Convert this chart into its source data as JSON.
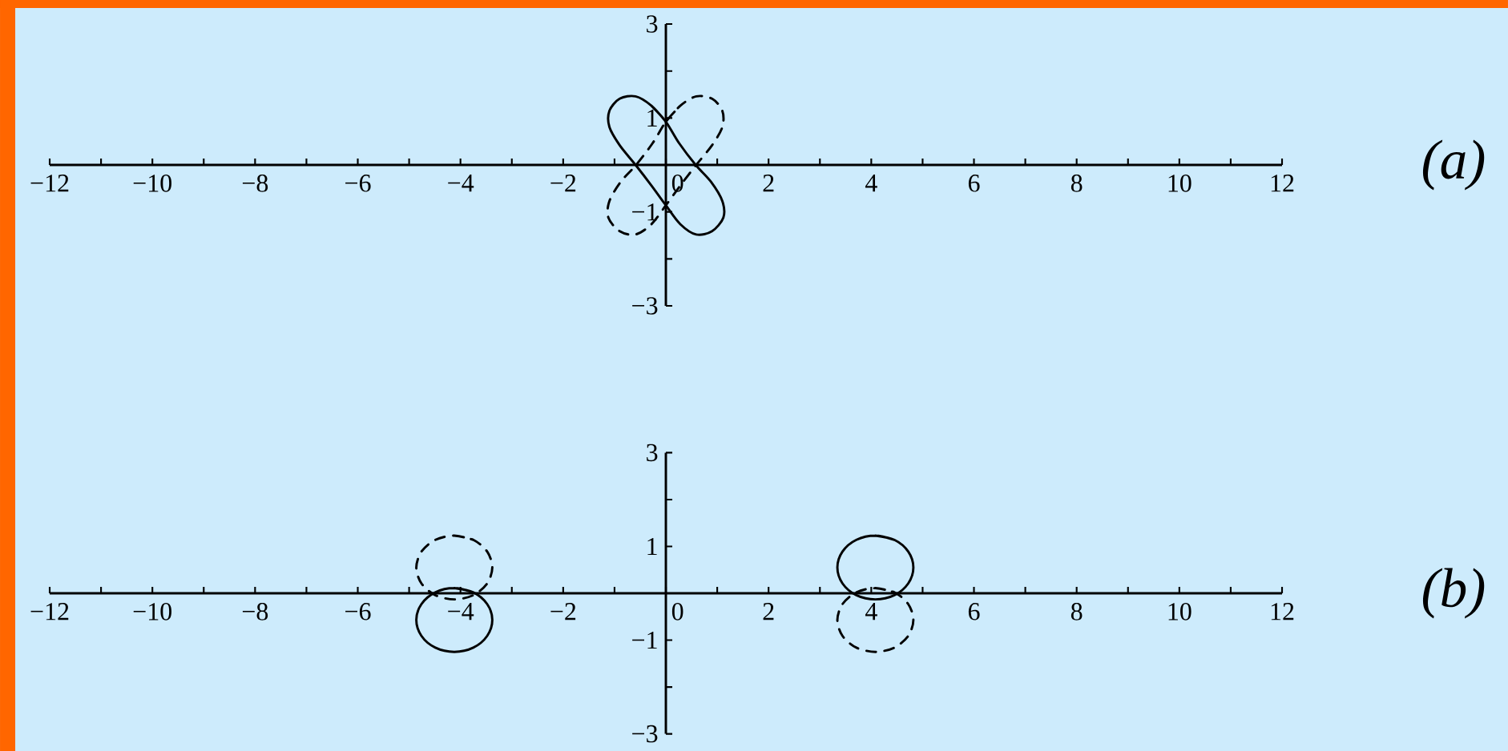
{
  "chart_data": [
    {
      "type": "line",
      "annotations": [
        "(a)"
      ],
      "xlim": [
        -12,
        12
      ],
      "ylim": [
        -3,
        3
      ],
      "marker": "none",
      "xticks": [
        {
          "value": -12,
          "label": "−12"
        },
        {
          "value": -11,
          "label": null
        },
        {
          "value": -10,
          "label": "−10"
        },
        {
          "value": -9,
          "label": null
        },
        {
          "value": -8,
          "label": "−8"
        },
        {
          "value": -7,
          "label": null
        },
        {
          "value": -6,
          "label": "−6"
        },
        {
          "value": -5,
          "label": null
        },
        {
          "value": -4,
          "label": "−4"
        },
        {
          "value": -3,
          "label": null
        },
        {
          "value": -2,
          "label": "−2"
        },
        {
          "value": -1,
          "label": null
        },
        0,
        {
          "value": 1,
          "label": null
        },
        2,
        {
          "value": 3,
          "label": null
        },
        4,
        {
          "value": 5,
          "label": null
        },
        6,
        {
          "value": 7,
          "label": null
        },
        8,
        {
          "value": 9,
          "label": null
        },
        10,
        {
          "value": 11,
          "label": null
        },
        12
      ],
      "yticks": [
        {
          "value": -3,
          "label": "−3"
        },
        {
          "value": -2,
          "label": null
        },
        {
          "value": -1,
          "label": "−1"
        },
        1,
        {
          "value": 2,
          "label": null
        },
        3
      ],
      "series": [
        {
          "color": "#000000",
          "line_style": "solid",
          "x": [
            0.0,
            -0.28,
            -0.59,
            -0.9,
            -1.1,
            -1.1,
            -0.9,
            -0.59,
            -0.28,
            0.0,
            0.28,
            0.59,
            0.9,
            1.12,
            1.1,
            0.88,
            0.58,
            0.26,
            0.0,
            -0.28
          ],
          "values": [
            0.92,
            1.26,
            1.46,
            1.41,
            1.15,
            0.81,
            0.42,
            0.0,
            -0.44,
            -0.86,
            -1.26,
            -1.48,
            -1.41,
            -1.12,
            -0.77,
            -0.36,
            0.0,
            0.46,
            0.92,
            1.26
          ]
        },
        {
          "color": "#000000",
          "line_style": "dashed",
          "x": [
            0.0,
            0.28,
            0.59,
            0.9,
            1.1,
            1.1,
            0.9,
            0.59,
            0.28,
            0.0,
            -0.28,
            -0.59,
            -0.9,
            -1.12,
            -1.1,
            -0.88,
            -0.58,
            -0.26,
            0.0,
            0.28
          ],
          "values": [
            0.92,
            1.26,
            1.46,
            1.41,
            1.15,
            0.81,
            0.42,
            0.0,
            -0.44,
            -0.86,
            -1.26,
            -1.48,
            -1.41,
            -1.12,
            -0.77,
            -0.36,
            0.0,
            0.46,
            0.92,
            1.26
          ]
        }
      ]
    },
    {
      "type": "line",
      "annotations": [
        "(b)"
      ],
      "xlim": [
        -12,
        12
      ],
      "ylim": [
        -3,
        3
      ],
      "marker": "none",
      "xticks": [
        {
          "value": -12,
          "label": "−12"
        },
        {
          "value": -11,
          "label": null
        },
        {
          "value": -10,
          "label": "−10"
        },
        {
          "value": -9,
          "label": null
        },
        {
          "value": -8,
          "label": "−8"
        },
        {
          "value": -7,
          "label": null
        },
        {
          "value": -6,
          "label": "−6"
        },
        {
          "value": -5,
          "label": null
        },
        {
          "value": -4,
          "label": "−4"
        },
        {
          "value": -3,
          "label": null
        },
        {
          "value": -2,
          "label": "−2"
        },
        {
          "value": -1,
          "label": null
        },
        0,
        {
          "value": 1,
          "label": null
        },
        2,
        {
          "value": 3,
          "label": null
        },
        4,
        {
          "value": 5,
          "label": null
        },
        6,
        {
          "value": 7,
          "label": null
        },
        8,
        {
          "value": 9,
          "label": null
        },
        10,
        {
          "value": 11,
          "label": null
        },
        12
      ],
      "yticks": [
        {
          "value": -3,
          "label": "−3"
        },
        {
          "value": -2,
          "label": null
        },
        {
          "value": -1,
          "label": "−1"
        },
        1,
        {
          "value": 2,
          "label": null
        },
        3
      ],
      "series": [
        {
          "color": "#000000",
          "line_style": "solid",
          "x": [
            4.08,
            4.45,
            4.72,
            4.82,
            4.72,
            4.45,
            4.08,
            3.71,
            3.44,
            3.34,
            3.44,
            3.71,
            4.08,
            4.45,
            null,
            -4.12,
            -3.75,
            -3.48,
            -3.38,
            -3.48,
            -3.75,
            -4.12,
            -4.49,
            -4.76,
            -4.86,
            -4.76,
            -4.49,
            -4.12,
            -3.75
          ],
          "values": [
            1.23,
            1.14,
            0.89,
            0.55,
            0.21,
            -0.04,
            -0.13,
            -0.04,
            0.21,
            0.55,
            0.89,
            1.14,
            1.23,
            1.14,
            null,
            0.11,
            0.02,
            -0.23,
            -0.57,
            -0.91,
            -1.16,
            -1.25,
            -1.16,
            -0.91,
            -0.57,
            -0.23,
            0.02,
            0.11,
            0.02
          ]
        },
        {
          "color": "#000000",
          "line_style": "dashed",
          "x": [
            -4.12,
            -3.75,
            -3.48,
            -3.38,
            -3.48,
            -3.75,
            -4.12,
            -4.49,
            -4.76,
            -4.86,
            -4.76,
            -4.49,
            -4.12,
            -3.75,
            null,
            4.08,
            4.45,
            4.72,
            4.82,
            4.72,
            4.45,
            4.08,
            3.71,
            3.44,
            3.34,
            3.44,
            3.71,
            4.08,
            4.45
          ],
          "values": [
            1.23,
            1.14,
            0.89,
            0.55,
            0.21,
            -0.04,
            -0.13,
            -0.04,
            0.21,
            0.55,
            0.89,
            1.14,
            1.23,
            1.14,
            null,
            0.11,
            0.02,
            -0.23,
            -0.57,
            -0.91,
            -1.16,
            -1.25,
            -1.16,
            -0.91,
            -0.57,
            -0.23,
            0.02,
            0.11,
            0.02
          ]
        }
      ]
    }
  ]
}
